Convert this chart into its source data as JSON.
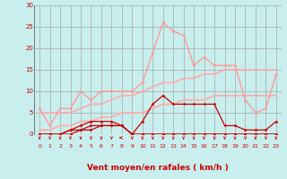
{
  "bg_color": "#c8eeed",
  "grid_color": "#999999",
  "xlabel": "Vent moyen/en rafales ( km/h )",
  "xlabel_color": "#cc0000",
  "xlabel_fontsize": 6.5,
  "tick_color": "#cc0000",
  "arrow_color": "#cc0000",
  "xlim": [
    -0.5,
    23.5
  ],
  "ylim": [
    0,
    30
  ],
  "yticks": [
    0,
    5,
    10,
    15,
    20,
    25,
    30
  ],
  "xticks": [
    0,
    1,
    2,
    3,
    4,
    5,
    6,
    7,
    8,
    9,
    10,
    11,
    12,
    13,
    14,
    15,
    16,
    17,
    18,
    19,
    20,
    21,
    22,
    23
  ],
  "series": [
    {
      "x": [
        0,
        1,
        2,
        3,
        4,
        5,
        6,
        7,
        8,
        9,
        10,
        11,
        12,
        13,
        14,
        15,
        16,
        17,
        18,
        19,
        20,
        21,
        22,
        23
      ],
      "y": [
        6,
        2,
        6,
        6,
        10,
        8,
        10,
        10,
        10,
        10,
        12,
        19,
        26,
        24,
        23,
        16,
        18,
        16,
        16,
        16,
        8,
        5,
        6,
        14
      ],
      "color": "#ff9999",
      "lw": 1.0,
      "marker": "D",
      "ms": 1.5
    },
    {
      "x": [
        0,
        1,
        2,
        3,
        4,
        5,
        6,
        7,
        8,
        9,
        10,
        11,
        12,
        13,
        14,
        15,
        16,
        17,
        18,
        19,
        20,
        21,
        22,
        23
      ],
      "y": [
        5,
        5,
        5,
        5,
        6,
        7,
        7,
        8,
        9,
        9,
        10,
        11,
        12,
        12,
        13,
        13,
        14,
        14,
        15,
        15,
        15,
        15,
        15,
        15
      ],
      "color": "#ffaaaa",
      "lw": 1.2,
      "marker": null,
      "ms": 0
    },
    {
      "x": [
        0,
        1,
        2,
        3,
        4,
        5,
        6,
        7,
        8,
        9,
        10,
        11,
        12,
        13,
        14,
        15,
        16,
        17,
        18,
        19,
        20,
        21,
        22,
        23
      ],
      "y": [
        1,
        1,
        2,
        2,
        3,
        3,
        4,
        4,
        5,
        5,
        5,
        6,
        7,
        7,
        8,
        8,
        8,
        9,
        9,
        9,
        9,
        9,
        9,
        9
      ],
      "color": "#ffaaaa",
      "lw": 1.2,
      "marker": null,
      "ms": 0
    },
    {
      "x": [
        0,
        1,
        2,
        3,
        4,
        5,
        6,
        7,
        8,
        9,
        10,
        11,
        12,
        13,
        14,
        15,
        16,
        17,
        18,
        19,
        20,
        21,
        22,
        23
      ],
      "y": [
        0,
        0,
        0,
        1,
        2,
        3,
        3,
        3,
        2,
        0,
        3,
        7,
        9,
        7,
        7,
        7,
        7,
        7,
        2,
        2,
        1,
        1,
        1,
        3
      ],
      "color": "#cc0000",
      "lw": 0.9,
      "marker": "D",
      "ms": 1.5
    },
    {
      "x": [
        0,
        1,
        2,
        3,
        4,
        5,
        6,
        7,
        8,
        9,
        10,
        11,
        12,
        13,
        14,
        15,
        16,
        17,
        18,
        19,
        20,
        21,
        22,
        23
      ],
      "y": [
        0,
        0,
        0,
        0,
        1,
        1,
        2,
        2,
        2,
        0,
        0,
        0,
        0,
        0,
        0,
        0,
        0,
        0,
        0,
        0,
        0,
        0,
        0,
        0
      ],
      "color": "#cc0000",
      "lw": 0.9,
      "marker": "D",
      "ms": 1.5
    },
    {
      "x": [
        0,
        1,
        2,
        3,
        4,
        5,
        6,
        7,
        8,
        9,
        10,
        11,
        12,
        13,
        14,
        15,
        16,
        17,
        18,
        19,
        20,
        21,
        22,
        23
      ],
      "y": [
        0,
        0,
        0,
        1,
        1,
        2,
        2,
        2,
        2,
        0,
        0,
        0,
        0,
        0,
        0,
        0,
        0,
        0,
        0,
        0,
        0,
        0,
        0,
        0
      ],
      "color": "#cc0000",
      "lw": 0.9,
      "marker": "D",
      "ms": 1.5
    }
  ]
}
